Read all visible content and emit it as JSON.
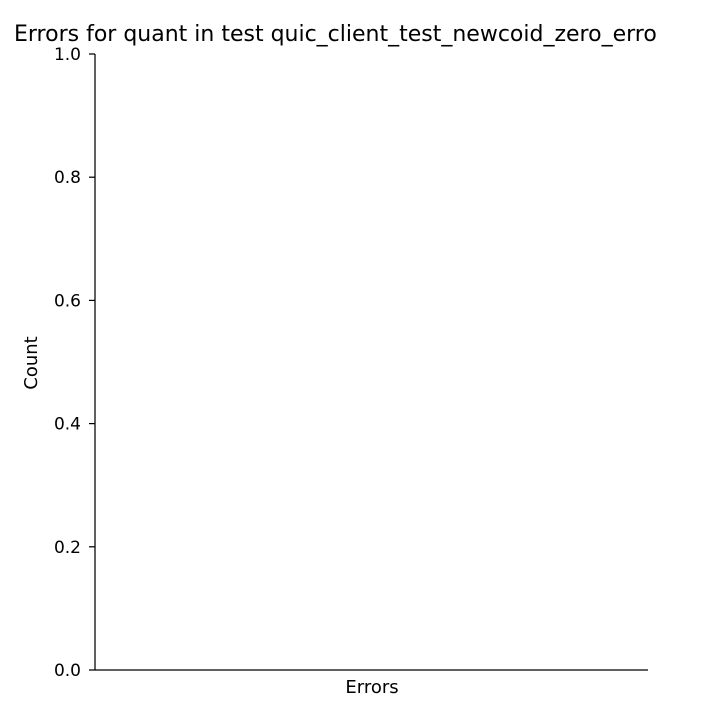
{
  "chart_data": {
    "type": "bar",
    "title": "Errors for quant in test quic_client_test_newcoid_zero_erro",
    "xlabel": "Errors",
    "ylabel": "Count",
    "categories": [],
    "values": [],
    "ylim": [
      0,
      1.0
    ],
    "y_ticks": [
      "0.0",
      "0.2",
      "0.4",
      "0.6",
      "0.8",
      "1.0"
    ],
    "grid": false,
    "legend": "none"
  }
}
